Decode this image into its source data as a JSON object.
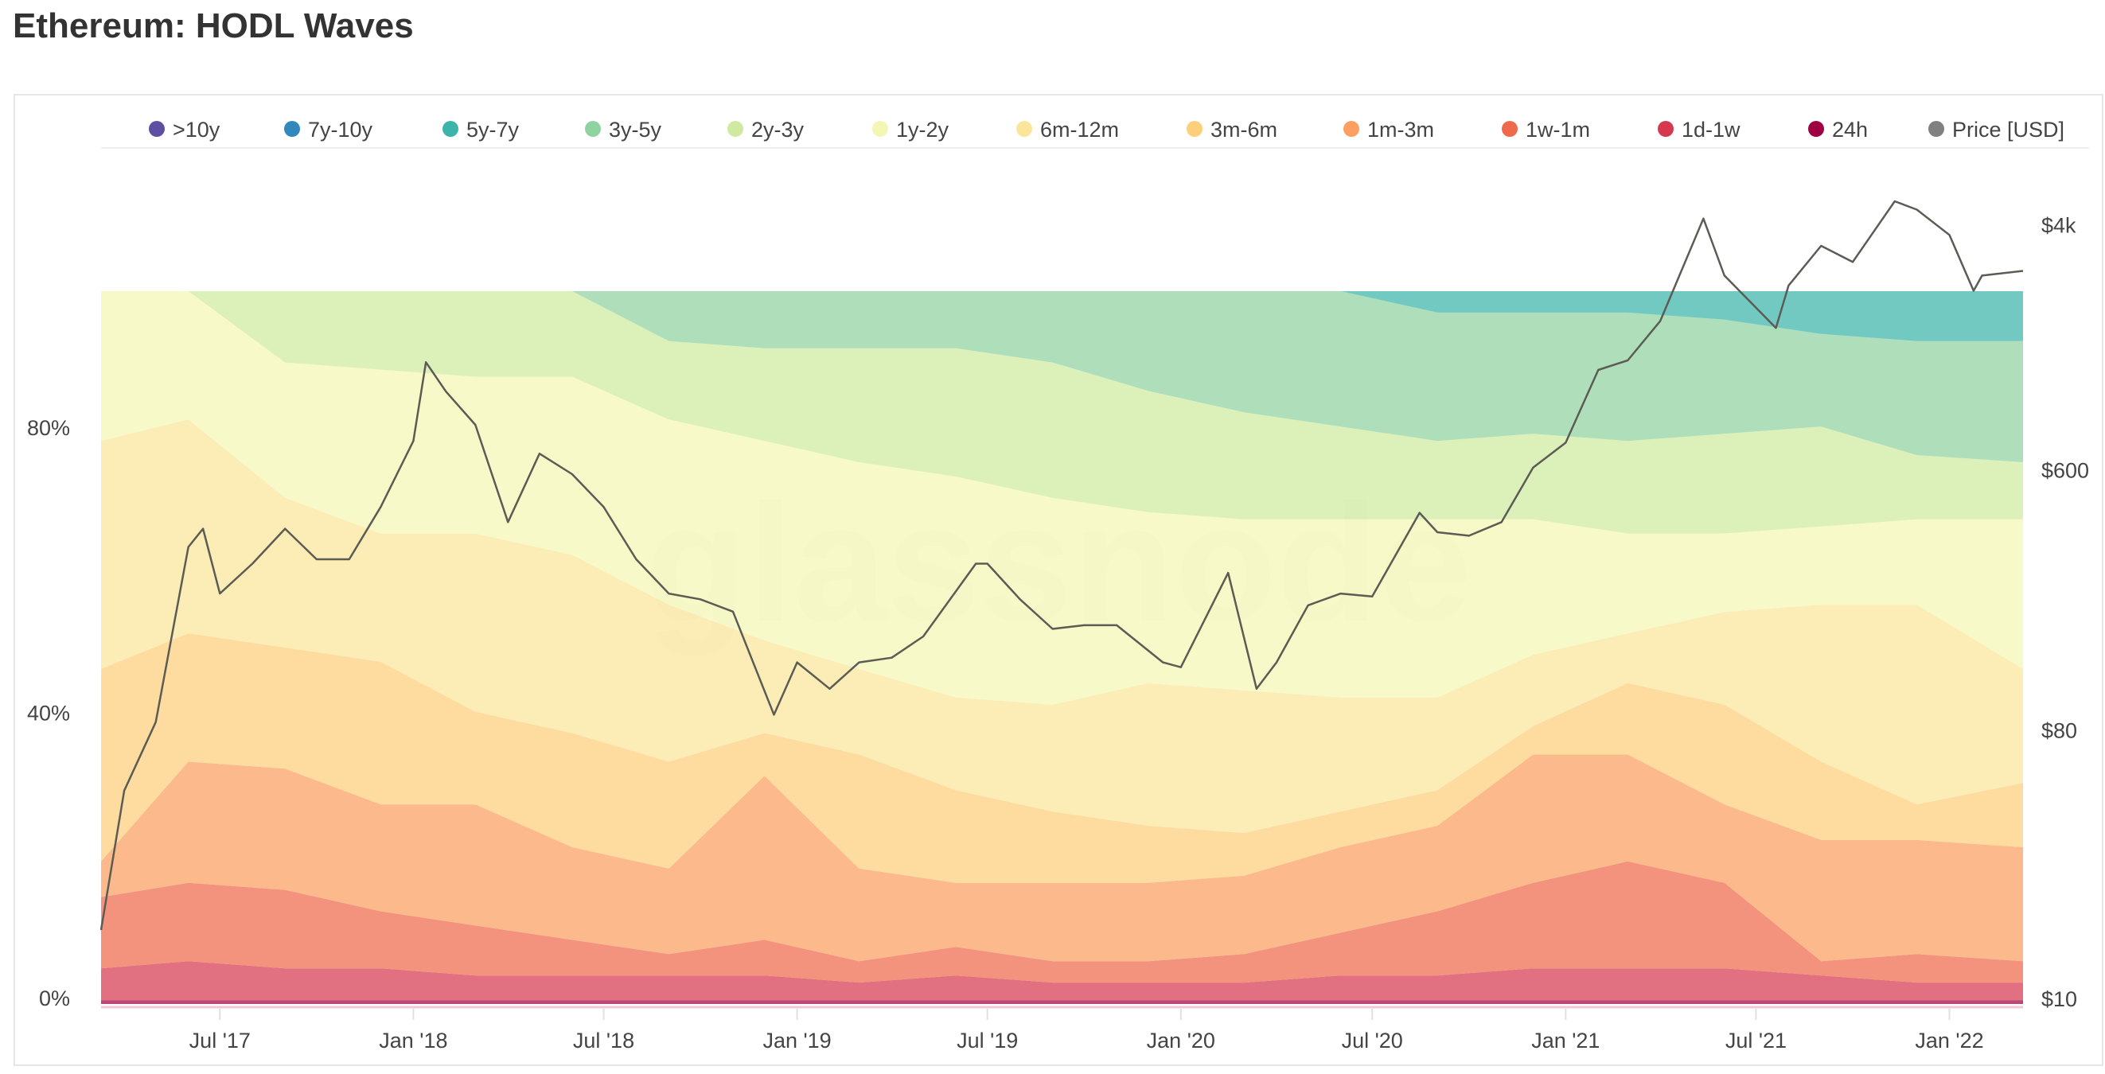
{
  "title": "Ethereum: HODL Waves",
  "watermark": "glassnode",
  "chart_data": {
    "type": "area",
    "stacked": true,
    "title": "Ethereum: HODL Waves",
    "xlim": [
      "2017-03-10",
      "2022-03-12"
    ],
    "x_ticks": [
      "Jul '17",
      "Jan '18",
      "Jul '18",
      "Jan '19",
      "Jul '19",
      "Jan '20",
      "Jul '20",
      "Jan '21",
      "Jul '21",
      "Jan '22"
    ],
    "x_tick_dates": [
      "2017-07-01",
      "2018-01-01",
      "2018-07-01",
      "2019-01-01",
      "2019-07-01",
      "2020-01-01",
      "2020-07-01",
      "2021-01-01",
      "2021-07-01",
      "2022-01-01"
    ],
    "y_left": {
      "ylim": [
        0,
        100
      ],
      "unit": "%",
      "ticks": [
        "0%",
        "40%",
        "80%"
      ],
      "tick_values": [
        0,
        40,
        80
      ]
    },
    "y_right": {
      "scale": "log",
      "ticks": [
        "$10",
        "$80",
        "$600",
        "$4k"
      ],
      "tick_values": [
        10,
        80,
        600,
        4000
      ]
    },
    "grid": false,
    "legend_position": "top",
    "x": [
      "2017-03-10",
      "2017-06-01",
      "2017-09-01",
      "2017-12-01",
      "2018-03-01",
      "2018-06-01",
      "2018-09-01",
      "2018-12-01",
      "2019-03-01",
      "2019-06-01",
      "2019-09-01",
      "2019-12-01",
      "2020-03-01",
      "2020-06-01",
      "2020-09-01",
      "2020-12-01",
      "2021-03-01",
      "2021-06-01",
      "2021-09-01",
      "2021-12-01",
      "2022-03-12"
    ],
    "series": [
      {
        "name": "24h",
        "color": "#9e0142",
        "values": [
          0.5,
          0.5,
          0.5,
          0.5,
          0.5,
          0.5,
          0.5,
          0.5,
          0.5,
          0.5,
          0.5,
          0.5,
          0.5,
          0.5,
          0.5,
          0.5,
          0.5,
          0.5,
          0.5,
          0.5,
          0.5
        ]
      },
      {
        "name": "1d-1w",
        "color": "#d6394f",
        "values": [
          4.5,
          5.5,
          4.5,
          4.5,
          3.5,
          3.5,
          3.5,
          3.5,
          2.5,
          3.5,
          2.5,
          2.5,
          2.5,
          3.5,
          3.5,
          4.5,
          4.5,
          4.5,
          3.5,
          2.5,
          2.5
        ]
      },
      {
        "name": "1w-1m",
        "color": "#ee6a4b",
        "values": [
          10,
          11,
          11,
          8,
          7,
          5,
          3,
          5,
          3,
          4,
          3,
          3,
          4,
          6,
          9,
          12,
          15,
          12,
          2,
          4,
          3
        ]
      },
      {
        "name": "1m-3m",
        "color": "#fba060",
        "values": [
          5,
          17,
          17,
          15,
          17,
          13,
          12,
          23,
          13,
          9,
          11,
          11,
          11,
          12,
          12,
          18,
          15,
          11,
          17,
          16,
          16
        ]
      },
      {
        "name": "3m-6m",
        "color": "#fdcf7a",
        "values": [
          27,
          18,
          17,
          20,
          13,
          16,
          15,
          6,
          16,
          13,
          10,
          8,
          6,
          5,
          5,
          4,
          10,
          14,
          11,
          5,
          9
        ]
      },
      {
        "name": "6m-12m",
        "color": "#fbe59a",
        "values": [
          32,
          30,
          21,
          18,
          25,
          25,
          22,
          13,
          12,
          13,
          15,
          20,
          20,
          16,
          13,
          10,
          7,
          13,
          22,
          28,
          16
        ]
      },
      {
        "name": "1y-2y",
        "color": "#f4f7b4",
        "values": [
          21,
          18,
          19,
          23,
          22,
          25,
          26,
          28,
          29,
          31,
          29,
          24,
          24,
          25,
          25,
          19,
          14,
          11,
          11,
          12,
          21
        ]
      },
      {
        "name": "2y-3y",
        "color": "#cfeaa0",
        "values": [
          0,
          0,
          10,
          11,
          12,
          12,
          11,
          13,
          16,
          18,
          19,
          17,
          15,
          13,
          11,
          12,
          13,
          14,
          14,
          9,
          8
        ]
      },
      {
        "name": "3y-5y",
        "color": "#8fd3a0",
        "values": [
          0,
          0,
          0,
          0,
          0,
          0,
          7,
          8,
          8,
          8,
          10,
          14,
          17,
          19,
          18,
          17,
          18,
          16,
          13,
          16,
          17
        ]
      },
      {
        "name": "5y-7y",
        "color": "#3cb4aa",
        "values": [
          0,
          0,
          0,
          0,
          0,
          0,
          0,
          0,
          0,
          0,
          0,
          0,
          0,
          0,
          3,
          3,
          3,
          4,
          6,
          7,
          7
        ]
      },
      {
        "name": "7y-10y",
        "color": "#3288bd",
        "values": [
          0,
          0,
          0,
          0,
          0,
          0,
          0,
          0,
          0,
          0,
          0,
          0,
          0,
          0,
          0,
          0,
          0,
          0,
          0,
          0,
          0
        ]
      },
      {
        "name": ">10y",
        "color": "#5e4fa2",
        "values": [
          0,
          0,
          0,
          0,
          0,
          0,
          0,
          0,
          0,
          0,
          0,
          0,
          0,
          0,
          0,
          0,
          0,
          0,
          0,
          0,
          0
        ]
      }
    ],
    "price": {
      "name": "Price [USD]",
      "color": "#808080",
      "x": [
        "2017-03-10",
        "2017-04-01",
        "2017-05-01",
        "2017-06-01",
        "2017-06-15",
        "2017-07-01",
        "2017-08-01",
        "2017-09-01",
        "2017-10-01",
        "2017-11-01",
        "2017-12-01",
        "2018-01-01",
        "2018-01-13",
        "2018-02-01",
        "2018-03-01",
        "2018-04-01",
        "2018-05-01",
        "2018-06-01",
        "2018-07-01",
        "2018-08-01",
        "2018-09-01",
        "2018-10-01",
        "2018-11-01",
        "2018-12-10",
        "2019-01-01",
        "2019-02-01",
        "2019-03-01",
        "2019-04-01",
        "2019-05-01",
        "2019-06-20",
        "2019-07-01",
        "2019-08-01",
        "2019-09-01",
        "2019-10-01",
        "2019-11-01",
        "2019-12-15",
        "2020-01-01",
        "2020-02-15",
        "2020-03-13",
        "2020-04-01",
        "2020-05-01",
        "2020-06-01",
        "2020-07-01",
        "2020-08-15",
        "2020-09-01",
        "2020-10-01",
        "2020-11-01",
        "2020-12-01",
        "2021-01-01",
        "2021-02-01",
        "2021-03-01",
        "2021-04-01",
        "2021-05-12",
        "2021-06-01",
        "2021-07-20",
        "2021-08-01",
        "2021-09-01",
        "2021-10-01",
        "2021-11-10",
        "2021-12-01",
        "2022-01-01",
        "2022-01-24",
        "2022-02-01",
        "2022-03-12"
      ],
      "values": [
        17,
        50,
        85,
        330,
        380,
        230,
        290,
        380,
        300,
        300,
        450,
        750,
        1380,
        1100,
        850,
        400,
        680,
        580,
        450,
        300,
        230,
        220,
        200,
        90,
        135,
        110,
        135,
        140,
        165,
        290,
        290,
        220,
        175,
        180,
        180,
        135,
        130,
        270,
        110,
        135,
        210,
        230,
        225,
        430,
        370,
        360,
        400,
        610,
        740,
        1300,
        1400,
        1900,
        4200,
        2700,
        1800,
        2500,
        3400,
        3000,
        4800,
        4500,
        3700,
        2400,
        2700,
        2800
      ]
    }
  }
}
